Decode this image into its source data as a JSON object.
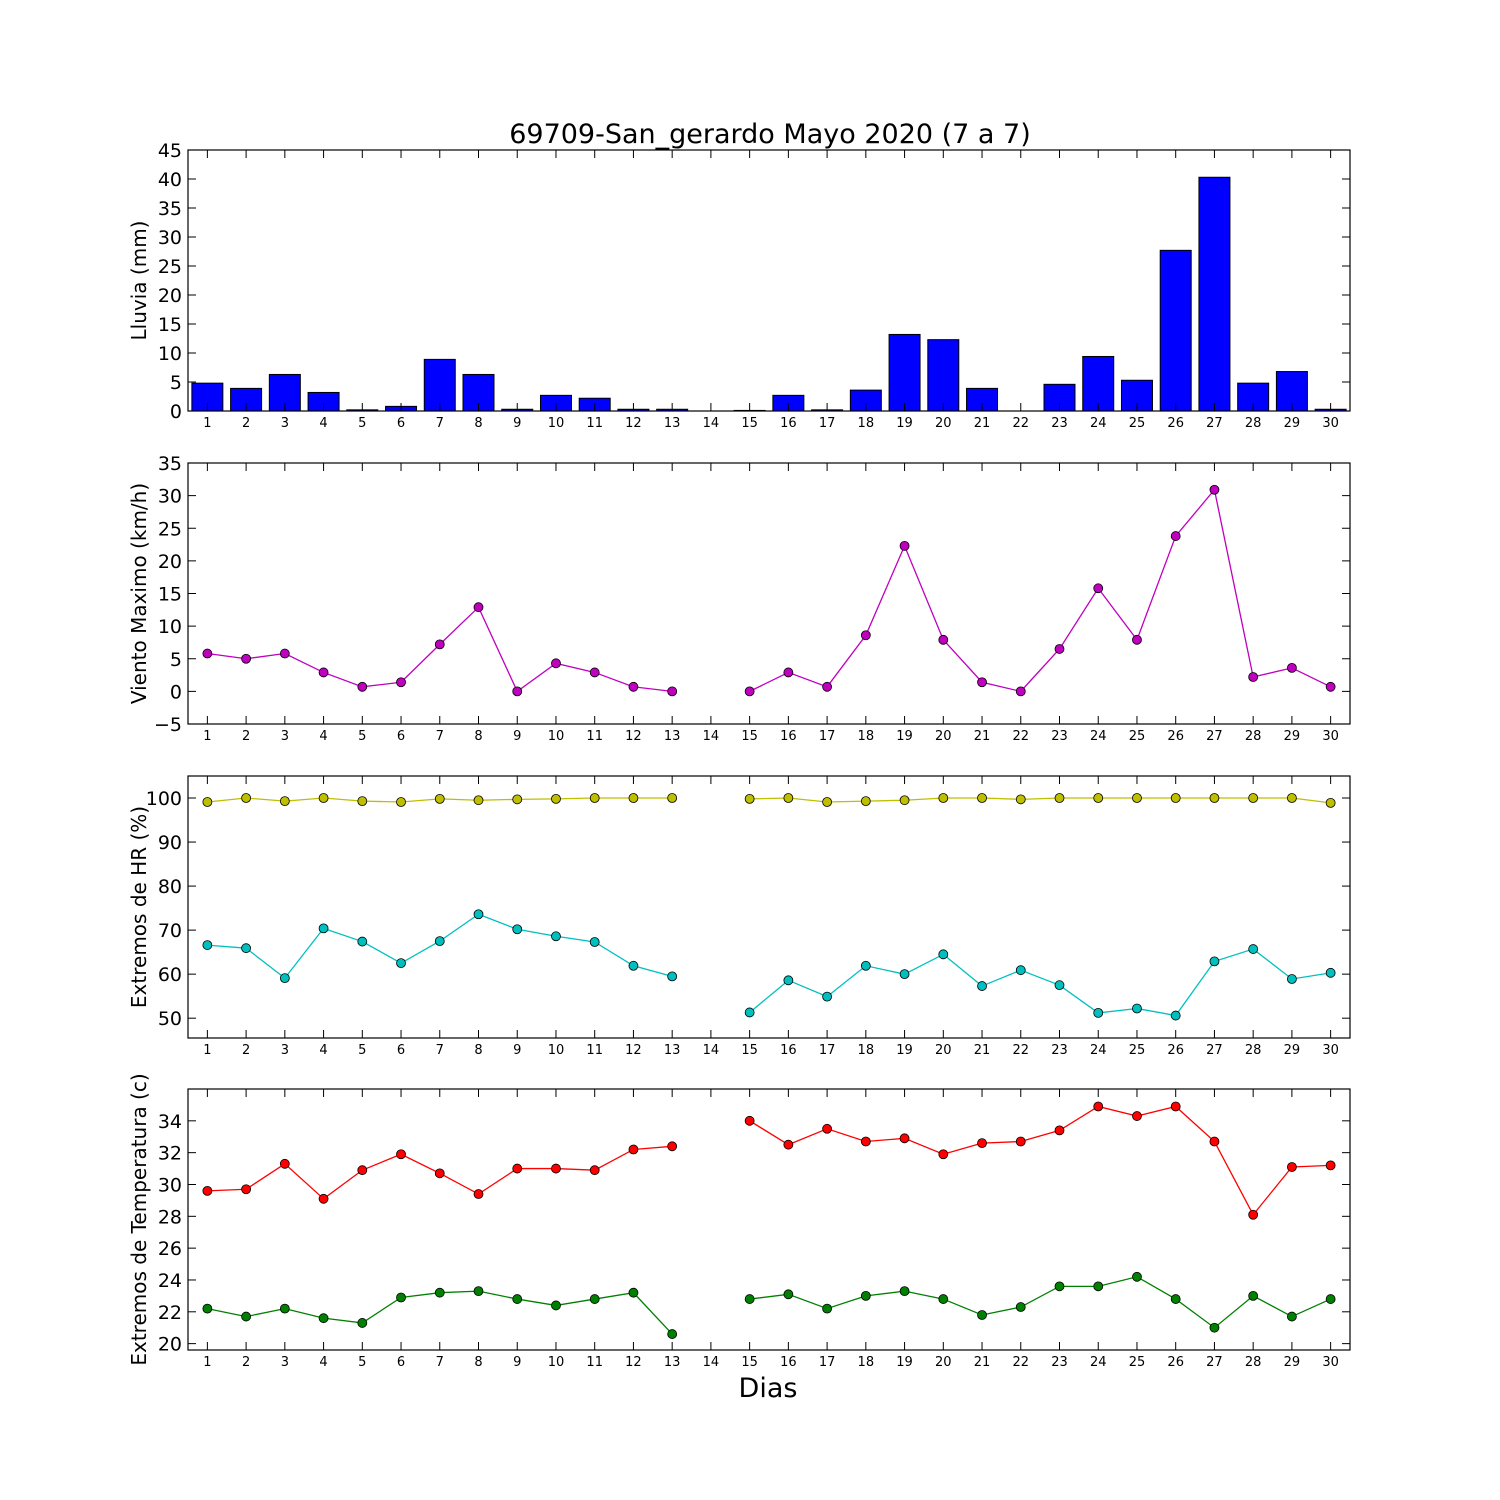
{
  "figure_title": "69709-San_gerardo Mayo 2020  (7 a 7)",
  "xlabel": "Dias",
  "colors": {
    "rain_bar": "#0000ff",
    "wind": "#bf00bf",
    "hr_max": "#bfbf00",
    "hr_min": "#00bfbf",
    "temp_max": "#ff0000",
    "temp_min": "#008000"
  },
  "chart_data": [
    {
      "type": "bar",
      "ylabel": "Lluvia (mm)",
      "ylim": [
        0,
        45
      ],
      "yticks": [
        0,
        5,
        10,
        15,
        20,
        25,
        30,
        35,
        40,
        45
      ],
      "categories": [
        1,
        2,
        3,
        4,
        5,
        6,
        7,
        8,
        9,
        10,
        11,
        12,
        13,
        14,
        15,
        16,
        17,
        18,
        19,
        20,
        21,
        22,
        23,
        24,
        25,
        26,
        27,
        28,
        29,
        30
      ],
      "values": [
        4.8,
        3.9,
        6.3,
        3.2,
        0.2,
        0.8,
        8.9,
        6.3,
        0.3,
        2.7,
        2.2,
        0.3,
        0.3,
        null,
        0.1,
        2.7,
        0.2,
        3.6,
        13.2,
        12.3,
        3.9,
        null,
        4.6,
        9.4,
        5.3,
        27.7,
        40.3,
        4.8,
        6.8,
        0.3
      ],
      "grid": false
    },
    {
      "type": "line",
      "ylabel": "Viento Maximo (km/h)",
      "ylim": [
        -5,
        35
      ],
      "yticks": [
        -5,
        0,
        5,
        10,
        15,
        20,
        25,
        30,
        35
      ],
      "x": [
        1,
        2,
        3,
        4,
        5,
        6,
        7,
        8,
        9,
        10,
        11,
        12,
        13,
        14,
        15,
        16,
        17,
        18,
        19,
        20,
        21,
        22,
        23,
        24,
        25,
        26,
        27,
        28,
        29,
        30
      ],
      "series": [
        {
          "values": [
            5.8,
            5.0,
            5.8,
            2.9,
            0.7,
            1.4,
            7.2,
            12.9,
            0.0,
            4.3,
            2.9,
            0.7,
            0.0,
            null,
            0.0,
            2.9,
            0.7,
            8.6,
            22.3,
            7.9,
            1.4,
            0.0,
            6.5,
            15.8,
            7.9,
            23.8,
            30.9,
            2.2,
            3.6,
            0.7
          ]
        }
      ],
      "grid": false
    },
    {
      "type": "line",
      "ylabel": "Extremos de HR (%)",
      "ylim": [
        45.5,
        105
      ],
      "yticks": [
        50,
        60,
        70,
        80,
        90,
        100
      ],
      "x": [
        1,
        2,
        3,
        4,
        5,
        6,
        7,
        8,
        9,
        10,
        11,
        12,
        13,
        14,
        15,
        16,
        17,
        18,
        19,
        20,
        21,
        22,
        23,
        24,
        25,
        26,
        27,
        28,
        29,
        30
      ],
      "series": [
        {
          "values": [
            99.1,
            100,
            99.3,
            100,
            99.3,
            99.1,
            99.8,
            99.5,
            99.7,
            99.8,
            100,
            100,
            100,
            null,
            99.8,
            100,
            99.1,
            99.3,
            99.5,
            100,
            100,
            99.7,
            100,
            100,
            100,
            100,
            100,
            100,
            100,
            98.9
          ]
        },
        {
          "values": [
            66.6,
            65.9,
            59.1,
            70.4,
            67.4,
            62.5,
            67.5,
            73.6,
            70.2,
            68.6,
            67.3,
            61.9,
            59.5,
            null,
            51.3,
            58.6,
            54.9,
            61.9,
            60.0,
            64.5,
            57.3,
            60.9,
            57.5,
            51.2,
            52.2,
            50.6,
            62.9,
            65.7,
            58.9,
            60.3
          ]
        }
      ],
      "grid": false
    },
    {
      "type": "line",
      "ylabel": "Extremos de Temperatura (c)",
      "ylim": [
        19.6,
        36
      ],
      "yticks": [
        20,
        22,
        24,
        26,
        28,
        30,
        32,
        34
      ],
      "x": [
        1,
        2,
        3,
        4,
        5,
        6,
        7,
        8,
        9,
        10,
        11,
        12,
        13,
        14,
        15,
        16,
        17,
        18,
        19,
        20,
        21,
        22,
        23,
        24,
        25,
        26,
        27,
        28,
        29,
        30
      ],
      "series": [
        {
          "values": [
            29.6,
            29.7,
            31.3,
            29.1,
            30.9,
            31.9,
            30.7,
            29.4,
            31.0,
            31.0,
            30.9,
            32.2,
            32.4,
            null,
            34.0,
            32.5,
            33.5,
            32.7,
            32.9,
            31.9,
            32.6,
            32.7,
            33.4,
            34.9,
            34.3,
            34.9,
            32.7,
            28.1,
            31.1,
            31.2
          ]
        },
        {
          "values": [
            22.2,
            21.7,
            22.2,
            21.6,
            21.3,
            22.9,
            23.2,
            23.3,
            22.8,
            22.4,
            22.8,
            23.2,
            20.6,
            null,
            22.8,
            23.1,
            22.2,
            23.0,
            23.3,
            22.8,
            21.8,
            22.3,
            23.6,
            23.6,
            24.2,
            22.8,
            21.0,
            23.0,
            21.7,
            22.8
          ]
        }
      ],
      "grid": false
    }
  ]
}
